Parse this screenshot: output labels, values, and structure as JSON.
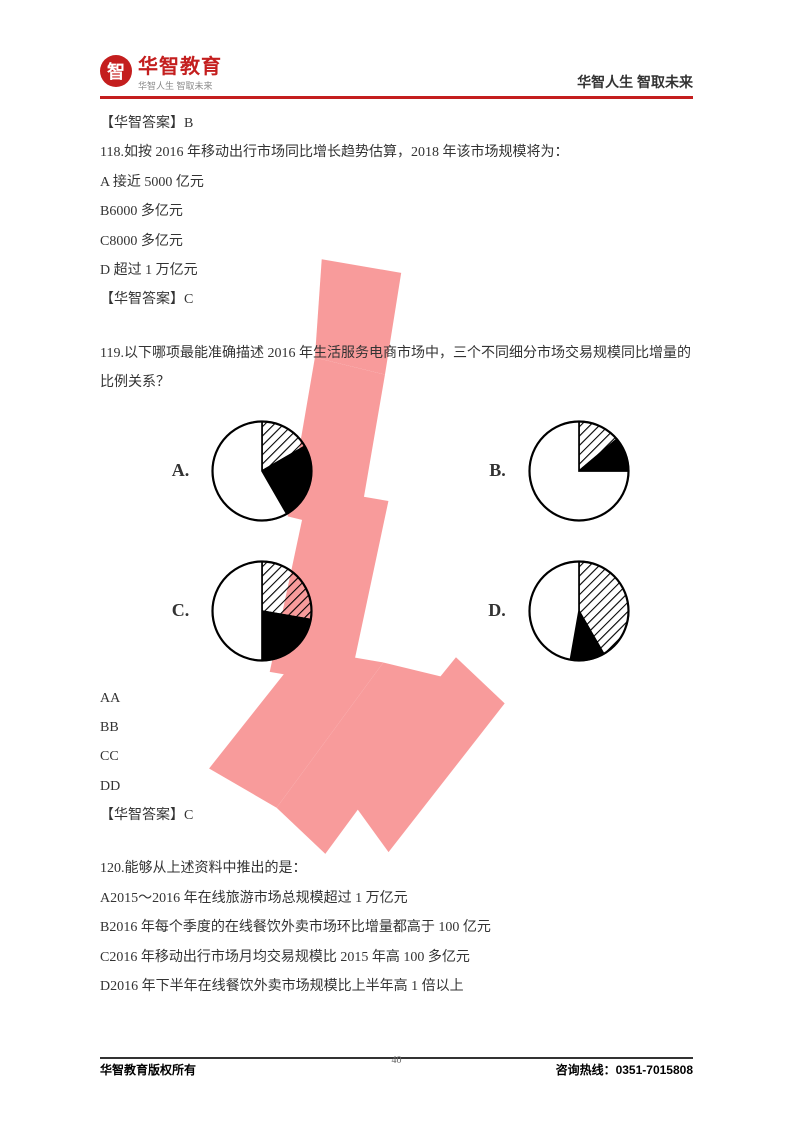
{
  "header": {
    "logo_char": "智",
    "logo_main": "华智教育",
    "logo_sub": "华智人生 智取未来",
    "right": "华智人生 智取未来"
  },
  "answer_b": "【华智答案】B",
  "q118": {
    "stem": "118.如按 2016 年移动出行市场同比增长趋势估算，2018 年该市场规模将为：",
    "optA": "A 接近 5000 亿元",
    "optB": "B6000 多亿元",
    "optC": "C8000 多亿元",
    "optD": "D 超过 1 万亿元",
    "answer": "【华智答案】C"
  },
  "q119": {
    "stem": "119.以下哪项最能准确描述 2016 年生活服务电商市场中，三个不同细分市场交易规模同比增量的比例关系？",
    "pies": {
      "A": {
        "label": "A.",
        "slices": [
          {
            "start": -90,
            "end": -30,
            "pattern": "hatch"
          },
          {
            "start": -30,
            "end": 60,
            "pattern": "black"
          },
          {
            "start": 60,
            "end": 270,
            "pattern": "white"
          }
        ]
      },
      "B": {
        "label": "B.",
        "slices": [
          {
            "start": -90,
            "end": -40,
            "pattern": "hatch"
          },
          {
            "start": -40,
            "end": 0,
            "pattern": "black"
          },
          {
            "start": 0,
            "end": 270,
            "pattern": "white"
          }
        ]
      },
      "C": {
        "label": "C.",
        "slices": [
          {
            "start": -90,
            "end": 10,
            "pattern": "hatch"
          },
          {
            "start": 10,
            "end": 90,
            "pattern": "black"
          },
          {
            "start": 90,
            "end": 270,
            "pattern": "white"
          }
        ]
      },
      "D": {
        "label": "D.",
        "slices": [
          {
            "start": -90,
            "end": 60,
            "pattern": "hatch"
          },
          {
            "start": 60,
            "end": 100,
            "pattern": "black"
          },
          {
            "start": 100,
            "end": 270,
            "pattern": "white"
          }
        ]
      }
    },
    "listAA": "AA",
    "listBB": "BB",
    "listCC": "CC",
    "listDD": "DD",
    "answer": "【华智答案】C"
  },
  "q120": {
    "stem": "120.能够从上述资料中推出的是：",
    "optA": "A2015～2016 年在线旅游市场总规模超过 1 万亿元",
    "optB": "B2016 年每个季度的在线餐饮外卖市场环比增量都高于 100 亿元",
    "optC": "C2016 年移动出行市场月均交易规模比 2015 年高 100 多亿元",
    "optD": "D2016 年下半年在线餐饮外卖市场规模比上半年高 1 倍以上"
  },
  "footer": {
    "left": "华智教育版权所有",
    "page": "40",
    "right": "咨询热线：0351-7015808"
  },
  "colors": {
    "brand": "#c41e1e",
    "text": "#333333",
    "stroke": "#000000",
    "watermark": "#f34b4b"
  }
}
